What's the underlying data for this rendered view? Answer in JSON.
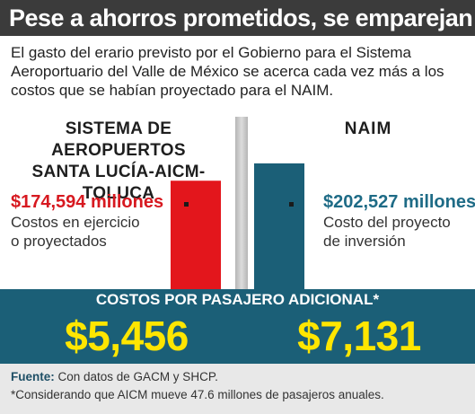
{
  "title": "Pese a ahorros prometidos, se emparejan",
  "intro": "El gasto del erario previsto por el Gobierno para el Sistema Aeroportuario del Valle de México se acerca cada vez más a los costos que se habían proyectado para el NAIM.",
  "left_heading_line1": "SISTEMA DE AEROPUERTOS",
  "left_heading_line2": "SANTA LUCÍA-AICM-TOLUCA",
  "right_heading": "NAIM",
  "chart_data": {
    "type": "bar",
    "categories": [
      "SISTEMA DE AEROPUERTOS SANTA LUCÍA-AICM-TOLUCA",
      "NAIM"
    ],
    "values": [
      174594,
      202527
    ],
    "ylim": [
      0,
      240000
    ],
    "data_labels": [
      "$174,594 millones",
      "$202,527 millones"
    ],
    "descriptions": [
      [
        "Costos en ejercicio",
        "o proyectados"
      ],
      [
        "Costo del proyecto",
        "de inversión"
      ]
    ],
    "colors": [
      "#e3161c",
      "#1b5f77"
    ],
    "grid": false
  },
  "band": {
    "title": "COSTOS POR PASAJERO ADICIONAL*",
    "left_value": "$5,456",
    "right_value": "$7,131"
  },
  "footer": {
    "source_label": "Fuente:",
    "source_text": " Con datos de GACM y SHCP.",
    "note": "*Considerando que AICM mueve 47.6 millones de pasajeros anuales."
  }
}
